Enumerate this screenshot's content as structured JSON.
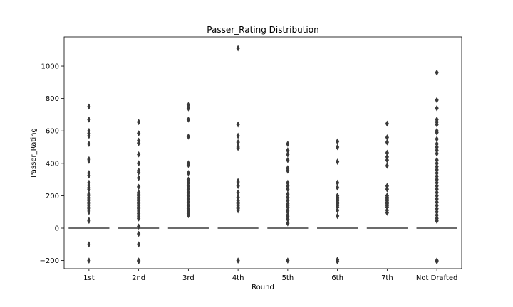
{
  "chart_data": {
    "type": "box",
    "title": "Passer_Rating Distribution",
    "xlabel": "Round",
    "ylabel": "Passer_Rating",
    "ylim": [
      -250,
      1180
    ],
    "yticks": [
      -200,
      0,
      200,
      400,
      600,
      800,
      1000
    ],
    "grid": false,
    "legend": "none",
    "box_color": "#3a3a3a",
    "categories": [
      "1st",
      "2nd",
      "3rd",
      "4th",
      "5th",
      "6th",
      "7th",
      "Not Drafted"
    ],
    "medians": [
      0,
      0,
      0,
      0,
      0,
      0,
      0,
      0
    ],
    "outliers": [
      [
        750,
        670,
        600,
        585,
        570,
        520,
        425,
        415,
        340,
        325,
        280,
        265,
        250,
        240,
        210,
        200,
        190,
        180,
        170,
        160,
        150,
        140,
        130,
        120,
        110,
        100,
        50,
        45,
        -100,
        -200
      ],
      [
        655,
        585,
        540,
        525,
        455,
        400,
        355,
        345,
        310,
        255,
        220,
        210,
        200,
        190,
        180,
        170,
        160,
        150,
        140,
        130,
        120,
        110,
        100,
        90,
        80,
        70,
        60,
        10,
        -35,
        -100,
        -200,
        -205
      ],
      [
        760,
        740,
        670,
        565,
        400,
        390,
        340,
        300,
        280,
        260,
        240,
        220,
        200,
        180,
        160,
        140,
        120,
        110,
        100,
        90,
        80
      ],
      [
        1110,
        640,
        570,
        530,
        505,
        495,
        290,
        280,
        260,
        220,
        190,
        170,
        160,
        150,
        140,
        130,
        120,
        110,
        -200
      ],
      [
        520,
        480,
        455,
        420,
        370,
        355,
        280,
        260,
        240,
        210,
        190,
        170,
        150,
        140,
        130,
        110,
        100,
        80,
        70,
        55,
        30,
        -200
      ],
      [
        535,
        500,
        410,
        280,
        250,
        200,
        190,
        180,
        170,
        160,
        150,
        140,
        130,
        110,
        75,
        -195,
        -205
      ],
      [
        645,
        560,
        530,
        465,
        440,
        420,
        385,
        260,
        240,
        200,
        190,
        180,
        170,
        160,
        150,
        140,
        130,
        110,
        95
      ],
      [
        960,
        790,
        740,
        670,
        655,
        640,
        600,
        590,
        550,
        520,
        500,
        480,
        460,
        420,
        400,
        380,
        360,
        340,
        320,
        300,
        280,
        260,
        240,
        220,
        200,
        180,
        160,
        140,
        120,
        100,
        80,
        60,
        45,
        -200,
        -205
      ]
    ]
  }
}
